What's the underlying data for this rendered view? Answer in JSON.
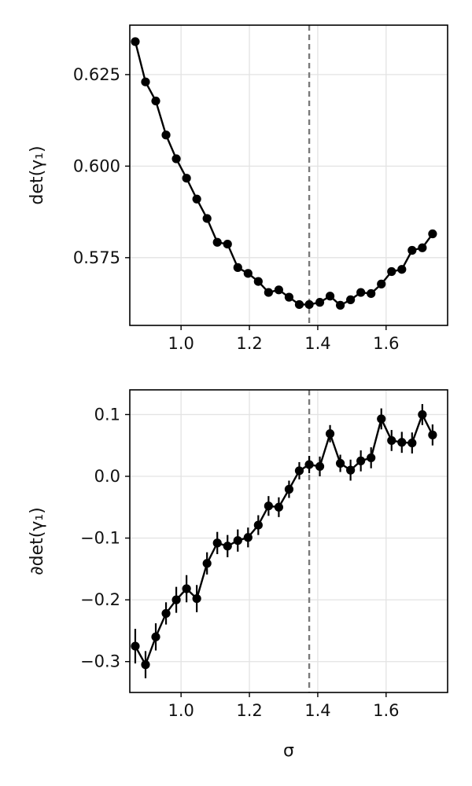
{
  "chart_data": [
    {
      "type": "line",
      "xlabel": "",
      "ylabel": "det(γ₁)",
      "xlim": [
        0.85,
        1.78
      ],
      "ylim": [
        0.5565,
        0.6385
      ],
      "xticks": [
        1.0,
        1.2,
        1.4,
        1.6
      ],
      "xtick_labels": [
        "1.0",
        "1.2",
        "1.4",
        "1.6"
      ],
      "yticks": [
        0.575,
        0.6,
        0.625
      ],
      "ytick_labels": [
        "0.575",
        "0.600",
        "0.625"
      ],
      "grid": true,
      "vline_x": 1.375,
      "x": [
        0.866,
        0.896,
        0.926,
        0.956,
        0.986,
        1.016,
        1.046,
        1.076,
        1.106,
        1.136,
        1.166,
        1.196,
        1.226,
        1.256,
        1.286,
        1.316,
        1.346,
        1.375,
        1.406,
        1.436,
        1.466,
        1.496,
        1.526,
        1.556,
        1.586,
        1.616,
        1.646,
        1.676,
        1.706,
        1.736
      ],
      "y": [
        0.634,
        0.623,
        0.6178,
        0.6085,
        0.602,
        0.5967,
        0.591,
        0.5857,
        0.5792,
        0.5787,
        0.5723,
        0.5707,
        0.5685,
        0.5655,
        0.5662,
        0.5642,
        0.5622,
        0.5622,
        0.5628,
        0.5645,
        0.562,
        0.5635,
        0.5655,
        0.5652,
        0.5678,
        0.5712,
        0.5718,
        0.577,
        0.5777,
        0.5815
      ]
    },
    {
      "type": "line",
      "xlabel": "σ",
      "ylabel": "∂det(γ₁)",
      "xlim": [
        0.85,
        1.78
      ],
      "ylim": [
        -0.35,
        0.14
      ],
      "xticks": [
        1.0,
        1.2,
        1.4,
        1.6
      ],
      "xtick_labels": [
        "1.0",
        "1.2",
        "1.4",
        "1.6"
      ],
      "yticks": [
        -0.3,
        -0.2,
        -0.1,
        0.0,
        0.1
      ],
      "ytick_labels": [
        "−0.3",
        "−0.2",
        "−0.1",
        "0.0",
        "0.1"
      ],
      "grid": true,
      "vline_x": 1.375,
      "x": [
        0.866,
        0.896,
        0.926,
        0.956,
        0.986,
        1.016,
        1.046,
        1.076,
        1.106,
        1.136,
        1.166,
        1.196,
        1.226,
        1.256,
        1.286,
        1.316,
        1.346,
        1.375,
        1.406,
        1.436,
        1.466,
        1.496,
        1.526,
        1.556,
        1.586,
        1.616,
        1.646,
        1.676,
        1.706,
        1.736
      ],
      "y": [
        -0.275,
        -0.305,
        -0.26,
        -0.222,
        -0.2,
        -0.182,
        -0.198,
        -0.141,
        -0.108,
        -0.113,
        -0.104,
        -0.099,
        -0.079,
        -0.048,
        -0.05,
        -0.021,
        0.009,
        0.019,
        0.016,
        0.069,
        0.021,
        0.01,
        0.025,
        0.03,
        0.093,
        0.058,
        0.055,
        0.054,
        0.1,
        0.067
      ],
      "yerr": [
        0.028,
        0.022,
        0.022,
        0.018,
        0.021,
        0.022,
        0.022,
        0.018,
        0.018,
        0.018,
        0.018,
        0.016,
        0.016,
        0.016,
        0.016,
        0.014,
        0.014,
        0.014,
        0.016,
        0.014,
        0.014,
        0.017,
        0.017,
        0.017,
        0.017,
        0.017,
        0.017,
        0.017,
        0.017,
        0.017
      ]
    }
  ]
}
